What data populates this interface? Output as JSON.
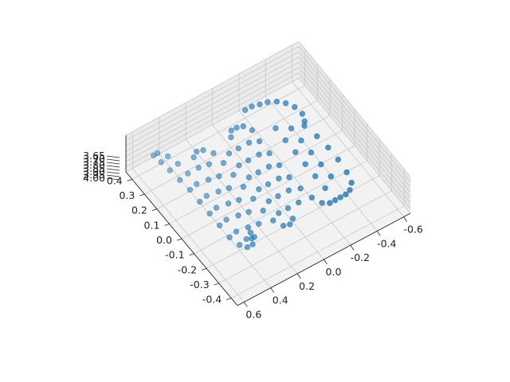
{
  "chart_data": {
    "type": "scatter",
    "title": "",
    "xlabel": "",
    "ylabel": "",
    "zlabel": "",
    "grid": true,
    "x_ticks": [
      "-0.6",
      "-0.4",
      "-0.2",
      "0.0",
      "0.2",
      "0.4",
      "0.6"
    ],
    "y_ticks": [
      "-0.4",
      "-0.3",
      "-0.2",
      "-0.1",
      "0.0",
      "0.1",
      "0.2",
      "0.3",
      "0.4"
    ],
    "z_ticks": [
      "3.65",
      "3.70",
      "3.75",
      "3.80",
      "3.85",
      "3.90",
      "3.95",
      "4.00"
    ],
    "xlim": [
      -0.65,
      0.65
    ],
    "ylim": [
      -0.45,
      0.45
    ],
    "zlim": [
      3.65,
      4.0
    ],
    "marker_color": "#1f77b4",
    "series": [
      {
        "description": "single continuous serpentine point path on a plane (approx z 3.8)",
        "points": [
          [
            -0.44,
            0.18
          ],
          [
            -0.46,
            0.1
          ],
          [
            -0.47,
            0.02
          ],
          [
            -0.47,
            -0.06
          ],
          [
            -0.46,
            -0.14
          ],
          [
            -0.44,
            -0.2
          ],
          [
            -0.4,
            -0.23
          ],
          [
            -0.36,
            -0.24
          ],
          [
            -0.32,
            -0.24
          ],
          [
            -0.28,
            -0.24
          ],
          [
            -0.24,
            -0.24
          ],
          [
            -0.2,
            -0.22
          ],
          [
            -0.17,
            -0.17
          ],
          [
            -0.15,
            -0.1
          ],
          [
            -0.14,
            -0.02
          ],
          [
            -0.14,
            0.06
          ],
          [
            -0.14,
            0.14
          ],
          [
            -0.14,
            0.22
          ],
          [
            -0.15,
            0.29
          ],
          [
            -0.12,
            0.33
          ],
          [
            -0.08,
            0.34
          ],
          [
            -0.04,
            0.34
          ],
          [
            -0.01,
            0.31
          ],
          [
            0.0,
            0.24
          ],
          [
            0.0,
            0.16
          ],
          [
            0.0,
            0.08
          ],
          [
            0.0,
            0.0
          ],
          [
            0.0,
            -0.08
          ],
          [
            0.0,
            -0.16
          ],
          [
            0.02,
            -0.22
          ],
          [
            0.06,
            -0.24
          ],
          [
            0.1,
            -0.23
          ],
          [
            0.13,
            -0.18
          ],
          [
            0.14,
            -0.11
          ],
          [
            0.14,
            -0.03
          ],
          [
            0.14,
            0.05
          ],
          [
            0.14,
            0.13
          ],
          [
            0.14,
            0.21
          ],
          [
            0.15,
            0.28
          ],
          [
            0.19,
            0.32
          ],
          [
            0.23,
            0.33
          ],
          [
            0.27,
            0.31
          ],
          [
            0.29,
            0.25
          ],
          [
            0.29,
            0.17
          ],
          [
            0.29,
            0.09
          ],
          [
            0.29,
            0.01
          ],
          [
            0.29,
            -0.07
          ],
          [
            0.29,
            -0.15
          ],
          [
            0.3,
            -0.21
          ],
          [
            0.34,
            -0.24
          ],
          [
            0.38,
            -0.24
          ],
          [
            0.41,
            -0.21
          ],
          [
            0.43,
            -0.15
          ],
          [
            0.43,
            -0.07
          ],
          [
            0.43,
            0.01
          ],
          [
            0.43,
            0.09
          ],
          [
            0.43,
            0.17
          ],
          [
            0.44,
            0.24
          ],
          [
            0.45,
            0.31
          ],
          [
            0.46,
            0.37
          ],
          [
            0.47,
            0.42
          ],
          [
            0.44,
            0.42
          ],
          [
            0.4,
            0.38
          ],
          [
            0.38,
            0.32
          ],
          [
            0.37,
            0.25
          ],
          [
            0.37,
            0.18
          ],
          [
            0.37,
            0.1
          ],
          [
            0.37,
            0.02
          ],
          [
            0.37,
            -0.06
          ],
          [
            0.37,
            -0.14
          ],
          [
            0.35,
            -0.2
          ],
          [
            0.32,
            -0.21
          ],
          [
            0.3,
            -0.18
          ],
          [
            -0.2,
            0.4
          ],
          [
            -0.25,
            0.4
          ],
          [
            -0.3,
            0.39
          ],
          [
            -0.35,
            0.38
          ],
          [
            -0.4,
            0.36
          ],
          [
            -0.44,
            0.33
          ],
          [
            -0.47,
            0.29
          ],
          [
            -0.48,
            0.24
          ],
          [
            -0.46,
            0.2
          ],
          [
            -0.08,
            0.24
          ],
          [
            -0.08,
            0.16
          ],
          [
            -0.08,
            0.08
          ],
          [
            -0.08,
            0.0
          ],
          [
            -0.08,
            -0.08
          ],
          [
            -0.08,
            -0.16
          ],
          [
            0.07,
            0.24
          ],
          [
            0.07,
            0.16
          ],
          [
            0.07,
            0.08
          ],
          [
            0.07,
            0.0
          ],
          [
            0.07,
            -0.08
          ],
          [
            0.07,
            -0.16
          ],
          [
            0.22,
            0.24
          ],
          [
            0.22,
            0.16
          ],
          [
            0.22,
            0.08
          ],
          [
            0.22,
            0.0
          ],
          [
            0.22,
            -0.08
          ],
          [
            0.22,
            -0.16
          ],
          [
            -0.28,
            0.24
          ],
          [
            -0.28,
            0.16
          ],
          [
            -0.28,
            0.08
          ],
          [
            -0.28,
            0.0
          ],
          [
            -0.28,
            -0.08
          ],
          [
            -0.28,
            -0.16
          ],
          [
            -0.36,
            0.2
          ],
          [
            -0.36,
            0.12
          ],
          [
            -0.36,
            0.04
          ],
          [
            -0.36,
            -0.04
          ],
          [
            -0.36,
            -0.12
          ]
        ]
      }
    ]
  }
}
